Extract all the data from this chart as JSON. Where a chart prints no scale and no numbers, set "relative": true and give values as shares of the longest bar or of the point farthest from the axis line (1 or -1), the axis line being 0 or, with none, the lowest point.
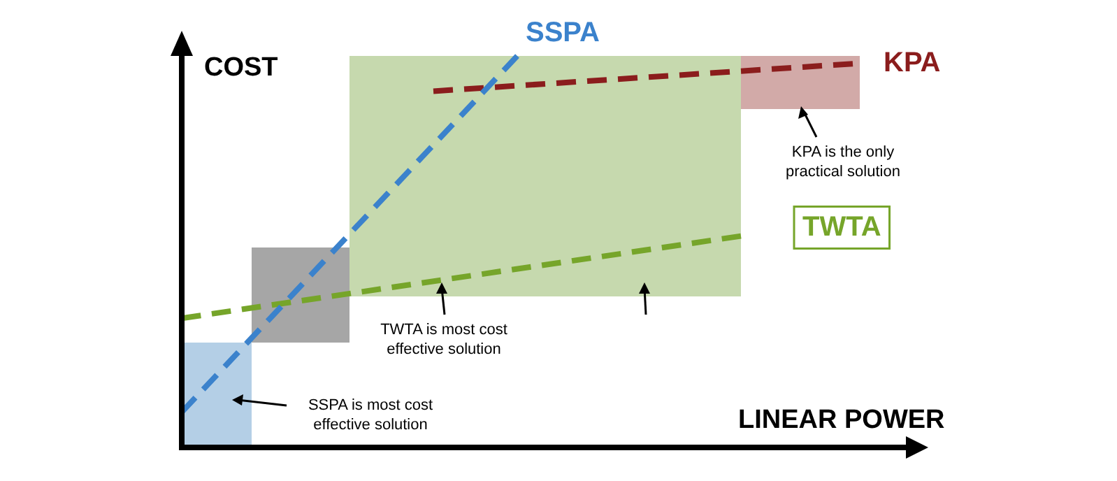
{
  "chart_data": {
    "type": "line",
    "xlabel": "LINEAR POWER",
    "ylabel": "COST",
    "relative": true,
    "line_style": "dashed",
    "marker": "none",
    "categories": [
      null,
      null,
      null,
      null,
      null,
      null,
      null,
      null,
      null,
      null,
      null,
      null,
      null,
      null,
      null,
      null,
      null,
      null,
      null,
      null,
      null,
      null,
      null,
      null,
      null,
      null,
      null
    ],
    "series": [
      {
        "name": "SSPA",
        "color": "#3b82cc",
        "values": [
          0.09,
          null,
          null,
          null,
          null,
          null,
          null,
          null,
          null,
          null,
          null,
          null,
          1,
          null,
          null,
          null,
          null,
          null,
          null,
          null,
          null,
          null,
          null,
          null,
          null,
          null,
          null
        ]
      },
      {
        "name": "TWTA",
        "color": "#76a52a",
        "values": [
          0.33,
          null,
          null,
          null,
          null,
          null,
          null,
          null,
          null,
          null,
          null,
          null,
          null,
          null,
          null,
          null,
          null,
          null,
          null,
          null,
          0.54,
          null,
          null,
          null,
          null,
          null,
          null
        ]
      },
      {
        "name": "KPA",
        "color": "#8b1d1d",
        "values": [
          null,
          null,
          null,
          null,
          null,
          null,
          null,
          null,
          null,
          0.91,
          null,
          null,
          null,
          null,
          null,
          null,
          null,
          null,
          null,
          null,
          null,
          null,
          null,
          null,
          0.98,
          null,
          null
        ]
      }
    ],
    "annotations": [
      "SSPA is most cost effective solution",
      "TWTA is most cost effective solution",
      "KPA is the only practical solution"
    ]
  }
}
